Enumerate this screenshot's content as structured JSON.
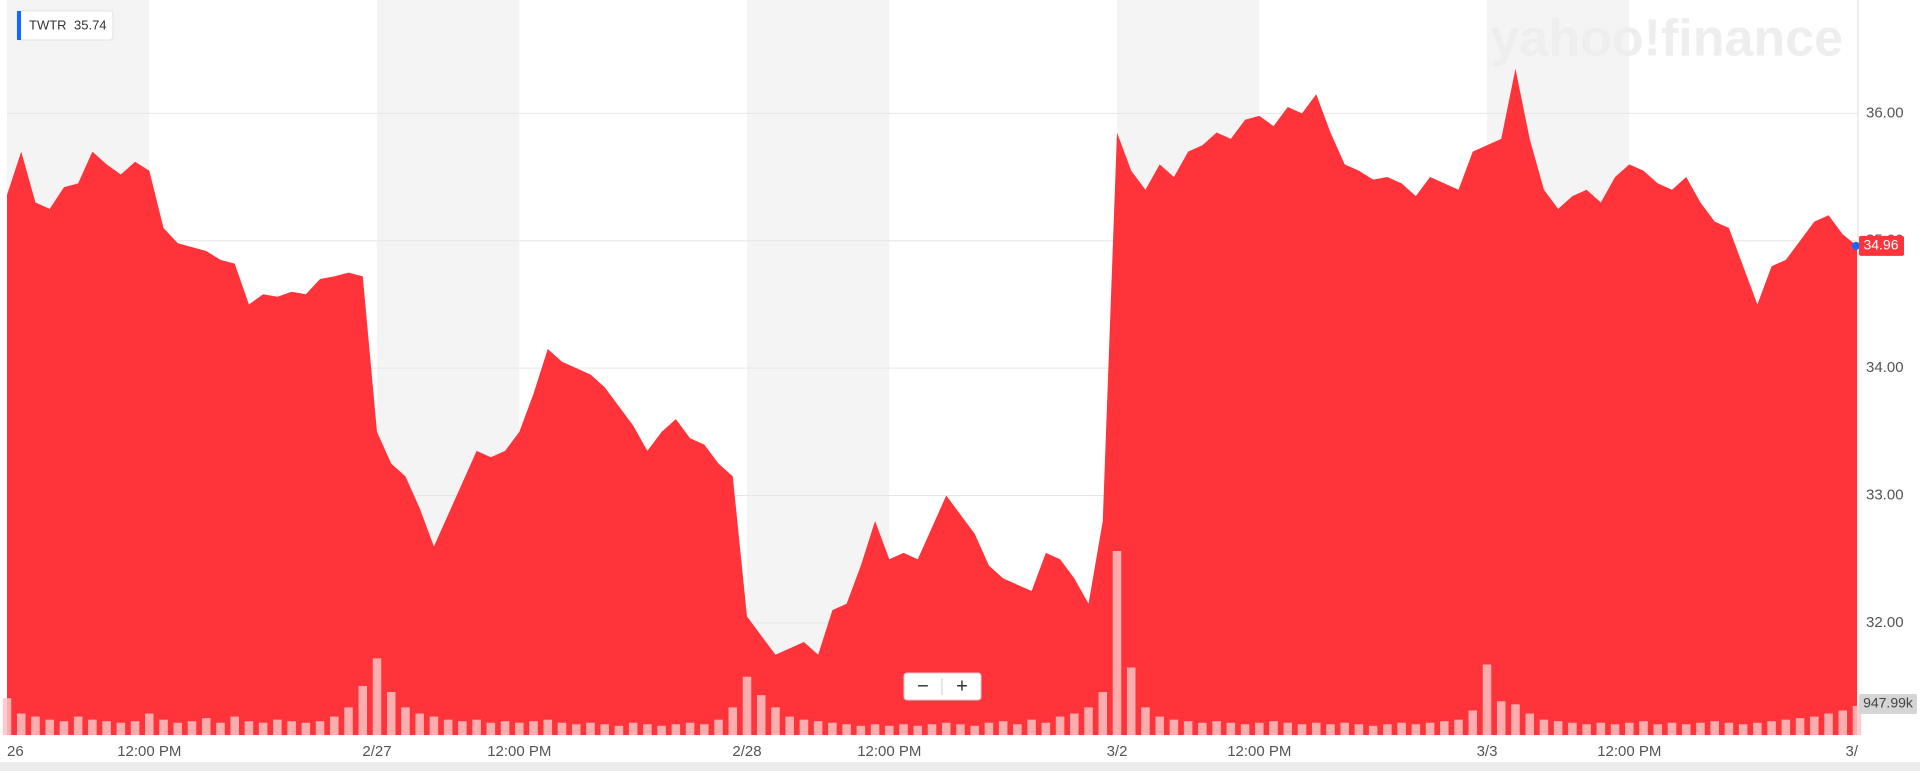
{
  "chart_data": {
    "type": "area",
    "legend": {
      "symbol": "TWTR",
      "quote": 35.74,
      "color": "#0f69ff"
    },
    "watermark": "yahoo!finance",
    "zoom_controls": [
      "−",
      "+"
    ],
    "categories": [
      "26",
      null,
      null,
      null,
      null,
      null,
      null,
      null,
      null,
      null,
      "12:00 PM",
      null,
      null,
      null,
      null,
      null,
      null,
      null,
      null,
      null,
      null,
      null,
      null,
      null,
      null,
      null,
      "2/27",
      null,
      null,
      null,
      null,
      null,
      null,
      null,
      null,
      null,
      "12:00 PM",
      null,
      null,
      null,
      null,
      null,
      null,
      null,
      null,
      null,
      null,
      null,
      null,
      null,
      null,
      null,
      "2/28",
      null,
      null,
      null,
      null,
      null,
      null,
      null,
      null,
      null,
      "12:00 PM",
      null,
      null,
      null,
      null,
      null,
      null,
      null,
      null,
      null,
      null,
      null,
      null,
      null,
      null,
      null,
      "3/2",
      null,
      null,
      null,
      null,
      null,
      null,
      null,
      null,
      null,
      "12:00 PM",
      null,
      null,
      null,
      null,
      null,
      null,
      null,
      null,
      null,
      null,
      null,
      null,
      null,
      null,
      null,
      "3/3",
      null,
      null,
      null,
      null,
      null,
      null,
      null,
      null,
      null,
      "12:00 PM",
      null,
      null,
      null,
      null,
      null,
      null,
      null,
      null,
      null,
      null,
      null,
      null,
      null,
      null,
      null,
      "3/"
    ],
    "series": [
      {
        "color": "#ff333a",
        "values": [
          35.36,
          35.7,
          35.3,
          35.25,
          35.42,
          35.45,
          35.7,
          35.6,
          35.52,
          35.62,
          35.55,
          35.1,
          34.98,
          34.95,
          34.92,
          34.85,
          34.82,
          34.5,
          34.58,
          34.56,
          34.6,
          34.58,
          34.7,
          34.72,
          34.75,
          34.72,
          33.5,
          33.25,
          33.15,
          32.9,
          32.6,
          32.85,
          33.1,
          33.35,
          33.3,
          33.35,
          33.5,
          33.8,
          34.15,
          34.05,
          34.0,
          33.95,
          33.85,
          33.7,
          33.55,
          33.35,
          33.5,
          33.6,
          33.45,
          33.4,
          33.25,
          33.15,
          32.05,
          31.9,
          31.75,
          31.8,
          31.85,
          31.75,
          32.1,
          32.15,
          32.45,
          32.8,
          32.5,
          32.55,
          32.5,
          32.75,
          33.0,
          32.85,
          32.7,
          32.45,
          32.35,
          32.3,
          32.25,
          32.55,
          32.5,
          32.35,
          32.15,
          32.8,
          35.85,
          35.55,
          35.4,
          35.6,
          35.5,
          35.7,
          35.75,
          35.85,
          35.8,
          35.95,
          35.98,
          35.9,
          36.05,
          36.0,
          36.15,
          35.85,
          35.6,
          35.55,
          35.48,
          35.5,
          35.45,
          35.35,
          35.5,
          35.45,
          35.4,
          35.7,
          35.75,
          35.8,
          36.35,
          35.8,
          35.4,
          35.25,
          35.35,
          35.4,
          35.3,
          35.5,
          35.6,
          35.55,
          35.45,
          35.4,
          35.5,
          35.3,
          35.15,
          35.1,
          34.8,
          34.5,
          34.8,
          34.85,
          35.0,
          35.15,
          35.2,
          35.05,
          34.96
        ]
      }
    ],
    "volume": {
      "color": "#ffc2c4",
      "values": [
        1200000,
        700000,
        600000,
        500000,
        450000,
        600000,
        500000,
        450000,
        400000,
        450000,
        700000,
        500000,
        400000,
        450000,
        550000,
        400000,
        600000,
        450000,
        400000,
        500000,
        450000,
        400000,
        450000,
        600000,
        900000,
        1600000,
        2500000,
        1400000,
        900000,
        700000,
        600000,
        500000,
        450000,
        500000,
        400000,
        450000,
        400000,
        450000,
        500000,
        400000,
        350000,
        400000,
        350000,
        300000,
        400000,
        350000,
        300000,
        350000,
        400000,
        350000,
        500000,
        900000,
        1900000,
        1300000,
        900000,
        600000,
        500000,
        450000,
        400000,
        350000,
        300000,
        350000,
        300000,
        350000,
        300000,
        350000,
        400000,
        350000,
        300000,
        400000,
        450000,
        350000,
        500000,
        400000,
        600000,
        700000,
        900000,
        1400000,
        6000000,
        2200000,
        900000,
        600000,
        500000,
        450000,
        400000,
        450000,
        400000,
        350000,
        400000,
        450000,
        400000,
        350000,
        400000,
        350000,
        400000,
        350000,
        300000,
        350000,
        400000,
        350000,
        400000,
        450000,
        500000,
        800000,
        2300000,
        1100000,
        1000000,
        700000,
        500000,
        450000,
        400000,
        350000,
        400000,
        350000,
        400000,
        450000,
        350000,
        400000,
        350000,
        400000,
        450000,
        400000,
        350000,
        400000,
        450000,
        500000,
        550000,
        600000,
        700000,
        800000,
        947990
      ],
      "value_labels": [
        null,
        null,
        null,
        null,
        null,
        null,
        null,
        null,
        null,
        null,
        null,
        null,
        null,
        null,
        null,
        null,
        null,
        null,
        null,
        null,
        null,
        null,
        null,
        null,
        null,
        null,
        null,
        null,
        null,
        null,
        null,
        null,
        null,
        null,
        null,
        null,
        null,
        null,
        null,
        null,
        null,
        null,
        null,
        null,
        null,
        null,
        null,
        null,
        null,
        null,
        null,
        null,
        null,
        null,
        null,
        null,
        null,
        null,
        null,
        null,
        null,
        null,
        null,
        null,
        null,
        null,
        null,
        null,
        null,
        null,
        null,
        null,
        null,
        null,
        null,
        null,
        null,
        null,
        null,
        null,
        null,
        null,
        null,
        null,
        null,
        null,
        null,
        null,
        null,
        null,
        null,
        null,
        null,
        null,
        null,
        null,
        null,
        null,
        null,
        null,
        null,
        null,
        null,
        null,
        null,
        null,
        null,
        null,
        null,
        null,
        null,
        null,
        null,
        null,
        null,
        null,
        null,
        null,
        null,
        null,
        null,
        null,
        null,
        null,
        null,
        null,
        null,
        null,
        null,
        null,
        "947.99k"
      ]
    },
    "ylim": [
      31.12,
      36.89
    ],
    "yticks": [
      {
        "value": 32,
        "label": "32.00"
      },
      {
        "value": 33,
        "label": "33.00"
      },
      {
        "value": 34,
        "label": "34.00"
      },
      {
        "value": 35,
        "label": "35.00"
      },
      {
        "value": 36,
        "label": "36.00"
      }
    ],
    "grid": true
  }
}
